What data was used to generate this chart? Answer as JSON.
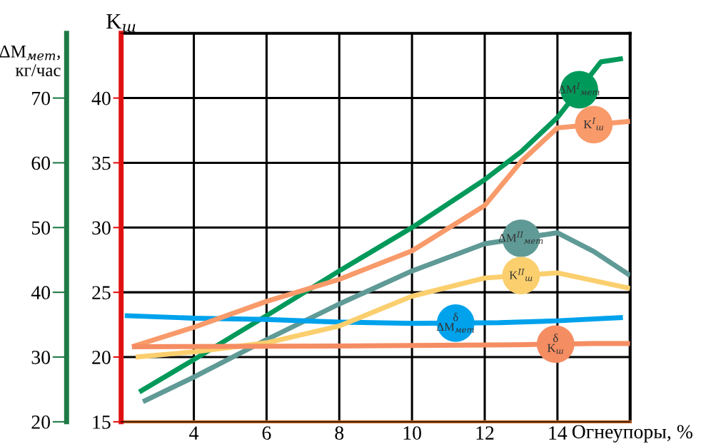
{
  "chart_data": {
    "type": "line",
    "xlabel": "Огнеупоры, %",
    "ylabel": "ΔM$_{мет}$,\nкг/час",
    "y2label": "K$_{ш}$",
    "xlim": [
      2,
      16
    ],
    "xticks": [
      4,
      6,
      8,
      10,
      12,
      14
    ],
    "ylim": [
      20,
      80
    ],
    "yticks": [
      20,
      30,
      40,
      50,
      60,
      70
    ],
    "y2lim": [
      15,
      45
    ],
    "y2ticks": [
      15,
      20,
      25,
      30,
      35,
      40
    ],
    "grid": true,
    "series": [
      {
        "name": "ΔM$^{I}$$_{мет}$",
        "color": "#00995a",
        "axis": "y",
        "x": [
          2.5,
          4,
          6,
          8,
          10,
          12,
          13,
          14,
          15.2,
          15.8
        ],
        "values": [
          24.6,
          29.6,
          36.4,
          43.3,
          50.0,
          57.4,
          61.7,
          67.0,
          75.6,
          76.1
        ]
      },
      {
        "name": "K$^{I}$$_{ш}$",
        "color": "#f89a6a",
        "axis": "y2",
        "x": [
          2.3,
          4,
          6,
          8,
          10,
          12,
          13,
          14,
          16
        ],
        "values": [
          20.8,
          22.3,
          24.3,
          26.0,
          28.2,
          31.7,
          35.1,
          37.7,
          38.2
        ]
      },
      {
        "name": "ΔM$^{II}$$_{мет}$",
        "color": "#5f9a96",
        "axis": "y",
        "x": [
          2.6,
          4,
          6,
          8,
          10,
          12,
          14,
          15,
          16
        ],
        "values": [
          23.1,
          26.9,
          32.7,
          38.2,
          43.3,
          47.5,
          49.2,
          46.3,
          42.6
        ]
      },
      {
        "name": "K$^{II}$$_{ш}$",
        "color": "#fbcf6e",
        "axis": "y2",
        "x": [
          2.4,
          4,
          6,
          8,
          10,
          12,
          14,
          16
        ],
        "values": [
          20.0,
          20.4,
          21.1,
          22.4,
          24.7,
          26.1,
          26.5,
          25.3
        ]
      },
      {
        "name": "δ\nΔM$_{мет}$",
        "color": "#00a2ec",
        "axis": "y",
        "x": [
          2.1,
          4,
          6,
          8,
          10,
          12.4,
          14,
          15.8
        ],
        "values": [
          36.4,
          36.0,
          35.8,
          35.4,
          35.2,
          35.3,
          35.6,
          36.1
        ]
      },
      {
        "name": "δ\nK$_{ш}$",
        "color": "#f58d63",
        "axis": "y2",
        "x": [
          2.3,
          8,
          12.9,
          15,
          16
        ],
        "values": [
          20.8,
          20.85,
          20.95,
          21.05,
          21.05
        ]
      }
    ]
  }
}
